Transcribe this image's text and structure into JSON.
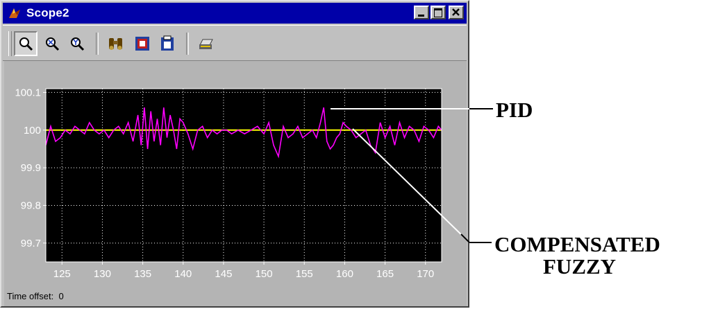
{
  "window": {
    "title": "Scope2",
    "controls": [
      "minimize-icon",
      "maximize-icon",
      "close-icon"
    ]
  },
  "toolbar": {
    "buttons": [
      {
        "name": "zoom-icon",
        "pressed": true
      },
      {
        "name": "zoom-x-icon",
        "pressed": false
      },
      {
        "name": "zoom-y-icon",
        "pressed": false
      },
      {
        "name": "autoscale-binoculars-icon",
        "pressed": false
      },
      {
        "name": "save-axes-settings-icon",
        "pressed": false
      },
      {
        "name": "scope-parameters-icon",
        "pressed": false
      },
      {
        "name": "print-icon",
        "pressed": false
      }
    ]
  },
  "status": {
    "label": "Time offset:",
    "value": "0"
  },
  "annotations": {
    "pid_label": "PID",
    "fuzzy_label_line1": "COMPENSATED",
    "fuzzy_label_line2": "FUZZY"
  },
  "chart_data": {
    "type": "line",
    "title": "",
    "xlabel": "",
    "ylabel": "",
    "xlim": [
      123,
      172
    ],
    "ylim": [
      99.65,
      100.11
    ],
    "x_ticks": [
      125,
      130,
      135,
      140,
      145,
      150,
      155,
      160,
      165,
      170
    ],
    "y_ticks": [
      99.7,
      99.8,
      99.9,
      100,
      100.1
    ],
    "y_tick_labels": [
      "99.7",
      "99.8",
      "99.9",
      "100",
      "100.1"
    ],
    "grid": true,
    "background": "#000000",
    "series": [
      {
        "color": "#ffff00",
        "x": [
          123,
          172
        ],
        "y": [
          100.0,
          100.0
        ]
      },
      {
        "color": "#ff00ff",
        "x": [
          123,
          123.6,
          124.2,
          124.8,
          125.4,
          126,
          126.6,
          127.2,
          127.8,
          128.4,
          129,
          129.6,
          130.2,
          130.8,
          131.4,
          132,
          132.6,
          133.2,
          133.8,
          134.4,
          134.8,
          135.2,
          135.6,
          136,
          136.4,
          136.8,
          137.2,
          137.6,
          138,
          138.4,
          138.8,
          139.2,
          139.6,
          140,
          140.6,
          141.2,
          141.8,
          142.4,
          143,
          143.6,
          144.2,
          144.8,
          145.4,
          146,
          146.8,
          147.6,
          148.4,
          149.2,
          150,
          150.6,
          151.2,
          151.8,
          152.4,
          153,
          153.6,
          154.2,
          154.8,
          155.4,
          156,
          156.5,
          157,
          157.4,
          157.8,
          158.2,
          158.6,
          159,
          159.4,
          159.8,
          160.2,
          160.8,
          161.4,
          162,
          162.6,
          163.2,
          163.8,
          164.4,
          165,
          165.6,
          166.2,
          166.8,
          167.4,
          168,
          168.6,
          169.2,
          169.8,
          170.4,
          171,
          171.6,
          172
        ],
        "y": [
          99.96,
          100.01,
          99.97,
          99.98,
          100.0,
          99.99,
          100.01,
          100.0,
          99.99,
          100.02,
          100.0,
          99.99,
          100.0,
          99.98,
          100.0,
          100.01,
          99.99,
          100.02,
          99.97,
          100.04,
          99.96,
          100.06,
          99.95,
          100.05,
          99.97,
          100.03,
          99.96,
          100.06,
          99.98,
          100.04,
          100.0,
          99.95,
          100.03,
          100.02,
          99.99,
          99.95,
          100.0,
          100.01,
          99.98,
          100.0,
          99.99,
          100.0,
          100.0,
          99.99,
          100.0,
          99.99,
          100.0,
          100.01,
          99.99,
          100.02,
          99.96,
          99.93,
          100.01,
          99.98,
          99.99,
          100.01,
          99.98,
          99.99,
          100.0,
          99.98,
          100.02,
          100.06,
          99.97,
          99.95,
          99.96,
          99.98,
          99.99,
          100.02,
          100.01,
          100.0,
          99.98,
          99.99,
          100.0,
          99.96,
          99.94,
          100.02,
          99.98,
          100.01,
          99.96,
          100.02,
          99.98,
          100.01,
          100.0,
          99.97,
          100.01,
          100.0,
          99.98,
          100.01,
          100.0
        ]
      }
    ]
  }
}
